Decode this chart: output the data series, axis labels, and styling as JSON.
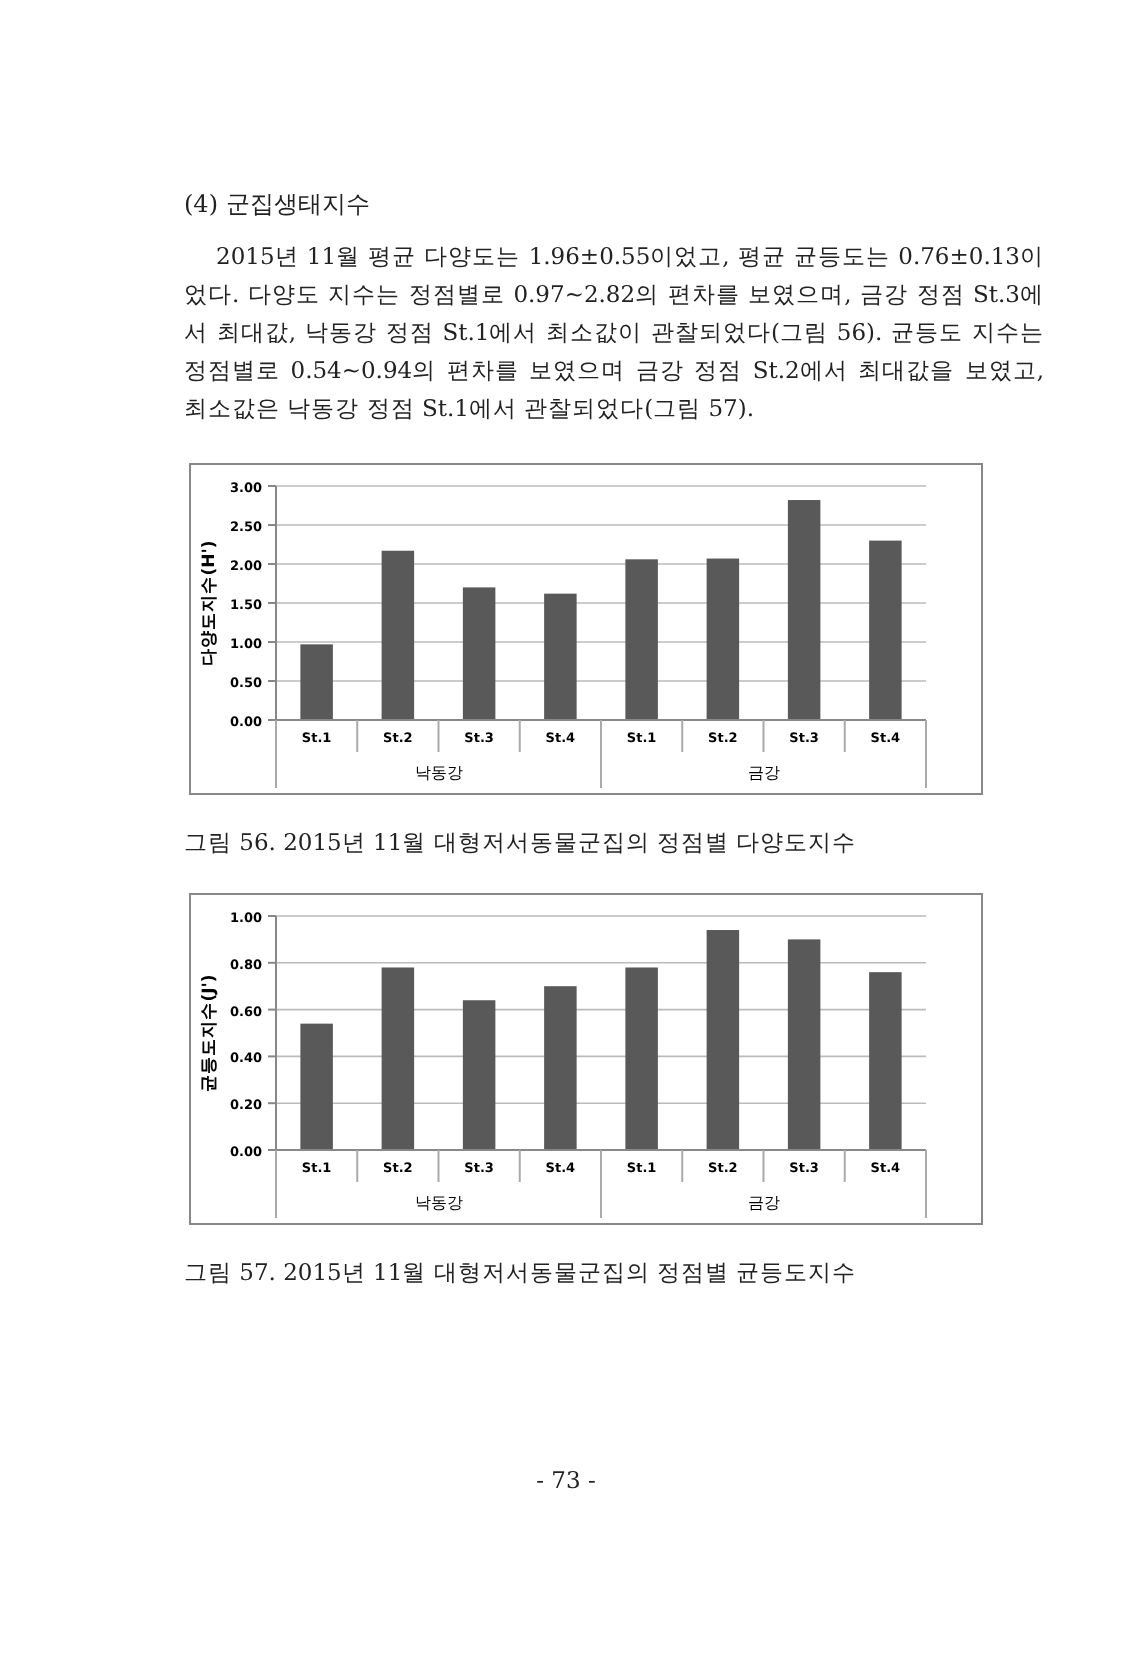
{
  "chart_data": [
    {
      "type": "bar",
      "title": "(4) 군집생태지수",
      "subtitle": "2015년 11월 평균 다양도는 1.96±0.55이었고, 평균 균등도는 0.76±0.13이었다. 다양도 지수는 정점별로 0.97~2.82의 편차를 보였으며, 금강 정점 St.3에서 최대값, 낙동강 정점 St.1에서 최소값이 관찰되었다(그림 56). 균등도 지수는 정점별로 0.54~0.94의 편차를 보였으며 금강 정점 St.2에서 최대값을 보였고, 최소값은 낙동강 정점 St.1에서 관찰되었다(그림 57).",
      "ylabel": "다양도지수(H')",
      "categories": [
        "St.1",
        "St.2",
        "St.3",
        "St.4",
        "St.1",
        "St.2",
        "St.3",
        "St.4"
      ],
      "values": [
        0.97,
        2.17,
        1.7,
        1.62,
        2.06,
        2.07,
        2.82,
        2.3
      ],
      "color": "#595959",
      "ylim": [
        0,
        3
      ],
      "yticks": [
        {
          "value": 0,
          "label": "0.00"
        },
        {
          "value": 0.5,
          "label": "0.50"
        },
        {
          "value": 1,
          "label": "1.00"
        },
        {
          "value": 1.5,
          "label": "1.50"
        },
        {
          "value": 2,
          "label": "2.00"
        },
        {
          "value": 2.5,
          "label": "2.50"
        },
        {
          "value": 3,
          "label": "3.00"
        }
      ],
      "grid": "y",
      "annotations": [
        "낙동강",
        "금강",
        "그림 56. 2015년 11월 대형저서동물군집의 정점별 다양도지수"
      ]
    },
    {
      "type": "bar",
      "ylabel": "균등도지수(J')",
      "categories": [
        "St.1",
        "St.2",
        "St.3",
        "St.4",
        "St.1",
        "St.2",
        "St.3",
        "St.4"
      ],
      "values": [
        0.54,
        0.78,
        0.64,
        0.7,
        0.78,
        0.94,
        0.9,
        0.76
      ],
      "color": "#595959",
      "ylim": [
        0,
        1
      ],
      "yticks": [
        {
          "value": 0,
          "label": "0.00"
        },
        {
          "value": 0.2,
          "label": "0.20"
        },
        {
          "value": 0.4,
          "label": "0.40"
        },
        {
          "value": 0.6,
          "label": "0.60"
        },
        {
          "value": 0.8,
          "label": "0.80"
        },
        {
          "value": 1,
          "label": "1.00"
        }
      ],
      "grid": "y",
      "annotations": [
        "낙동강",
        "금강",
        "그림 57. 2015년 11월 대형저서동물군집의 정점별 균등도지수",
        "- 73 -"
      ]
    }
  ]
}
